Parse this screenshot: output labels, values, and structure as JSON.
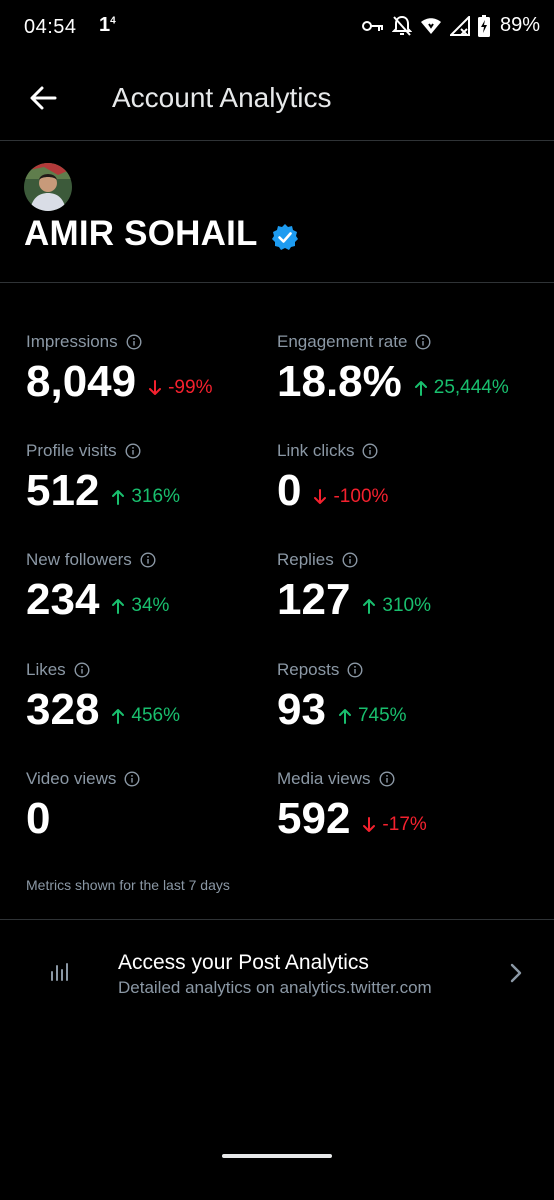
{
  "status_bar": {
    "time": "04:54",
    "notification": "1",
    "notification_sup": "4",
    "battery": "89%"
  },
  "app_bar": {
    "title": "Account Analytics",
    "back_icon": "arrow-left-icon"
  },
  "profile": {
    "name": "AMIR SOHAIL",
    "verified_icon": "verified-badge-icon",
    "verified_color": "#1d9bf0"
  },
  "metrics": [
    {
      "label": "Impressions",
      "value": "8,049",
      "change": "-99%",
      "direction": "down"
    },
    {
      "label": "Engagement rate",
      "value": "18.8%",
      "change": "25,444%",
      "direction": "up"
    },
    {
      "label": "Profile visits",
      "value": "512",
      "change": "316%",
      "direction": "up"
    },
    {
      "label": "Link clicks",
      "value": "0",
      "change": "-100%",
      "direction": "down"
    },
    {
      "label": "New followers",
      "value": "234",
      "change": "34%",
      "direction": "up"
    },
    {
      "label": "Replies",
      "value": "127",
      "change": "310%",
      "direction": "up"
    },
    {
      "label": "Likes",
      "value": "328",
      "change": "456%",
      "direction": "up"
    },
    {
      "label": "Reposts",
      "value": "93",
      "change": "745%",
      "direction": "up"
    },
    {
      "label": "Video views",
      "value": "0",
      "change": "",
      "direction": "none"
    },
    {
      "label": "Media views",
      "value": "592",
      "change": "-17%",
      "direction": "down"
    }
  ],
  "metrics_note": "Metrics shown for the last 7 days",
  "post_analytics": {
    "title": "Access your Post Analytics",
    "subtitle": "Detailed analytics on analytics.twitter.com",
    "icon": "bar-chart-icon"
  },
  "colors": {
    "up": "#19bf6e",
    "down": "#f4212e",
    "muted": "#8b98a5"
  }
}
